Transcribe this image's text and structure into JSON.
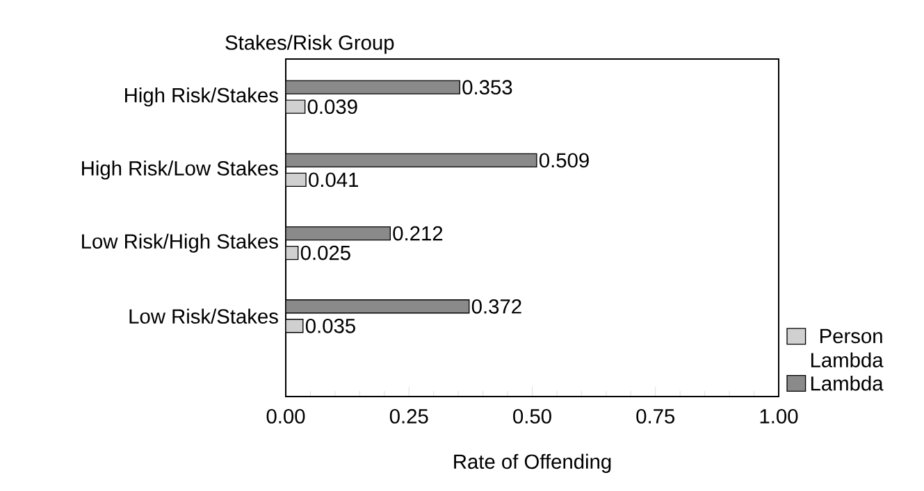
{
  "chart_data": {
    "type": "bar",
    "orientation": "horizontal",
    "ylabel": "Stakes/Risk Group",
    "xlabel": "Rate of Offending",
    "categories": [
      "High Risk/Stakes",
      "High Risk/Low Stakes",
      "Low Risk/High Stakes",
      "Low Risk/Stakes"
    ],
    "series": [
      {
        "name": "Person Lambda",
        "color": "#d0d0d0",
        "values": [
          0.039,
          0.041,
          0.025,
          0.035
        ]
      },
      {
        "name": "Lambda",
        "color": "#8a8a8a",
        "values": [
          0.353,
          0.509,
          0.212,
          0.372
        ]
      }
    ],
    "xlim": [
      0,
      1
    ],
    "xticks": [
      {
        "value": 0,
        "label": "0.00"
      },
      {
        "value": 0.25,
        "label": "0.25"
      },
      {
        "value": 0.5,
        "label": "0.50"
      },
      {
        "value": 0.75,
        "label": "0.75"
      },
      {
        "value": 1,
        "label": "1.00"
      }
    ],
    "data_labels": true,
    "legend": "bottom right"
  }
}
